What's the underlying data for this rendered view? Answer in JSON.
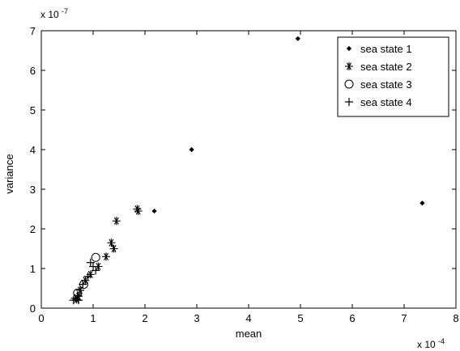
{
  "chart_data": {
    "type": "scatter",
    "xlabel": "mean",
    "ylabel": "variance",
    "x_multiplier": {
      "base": "x 10",
      "exponent": "-4"
    },
    "y_multiplier": {
      "base": "x 10",
      "exponent": "-7"
    },
    "xlim": [
      0,
      8
    ],
    "ylim": [
      0,
      7
    ],
    "xticks": [
      "0",
      "1",
      "2",
      "3",
      "4",
      "5",
      "6",
      "7",
      "8"
    ],
    "yticks": [
      "0",
      "1",
      "2",
      "3",
      "4",
      "5",
      "6",
      "7"
    ],
    "grid": false,
    "legend_position": "top-right",
    "series": [
      {
        "name": "sea state 1",
        "marker": ".",
        "points": [
          [
            4.95,
            6.8
          ],
          [
            2.9,
            4.0
          ],
          [
            2.18,
            2.45
          ],
          [
            7.35,
            2.65
          ]
        ]
      },
      {
        "name": "sea state 2",
        "marker": "*",
        "points": [
          [
            1.45,
            2.2
          ],
          [
            1.85,
            2.5
          ],
          [
            1.87,
            2.45
          ],
          [
            1.35,
            1.65
          ],
          [
            1.4,
            1.5
          ],
          [
            1.25,
            1.3
          ],
          [
            1.1,
            1.05
          ],
          [
            0.95,
            0.85
          ],
          [
            0.85,
            0.7
          ],
          [
            0.75,
            0.45
          ],
          [
            0.72,
            0.3
          ],
          [
            0.68,
            0.22
          ]
        ]
      },
      {
        "name": "sea state 3",
        "marker": "o",
        "points": [
          [
            1.05,
            1.28
          ],
          [
            0.82,
            0.6
          ],
          [
            0.7,
            0.38
          ]
        ]
      },
      {
        "name": "sea state 4",
        "marker": "+",
        "points": [
          [
            0.95,
            1.15
          ],
          [
            1.0,
            1.05
          ],
          [
            1.05,
            0.95
          ],
          [
            0.9,
            0.8
          ],
          [
            0.8,
            0.6
          ],
          [
            0.75,
            0.45
          ],
          [
            0.7,
            0.32
          ],
          [
            0.65,
            0.25
          ],
          [
            0.72,
            0.2
          ],
          [
            0.62,
            0.2
          ]
        ]
      }
    ]
  }
}
